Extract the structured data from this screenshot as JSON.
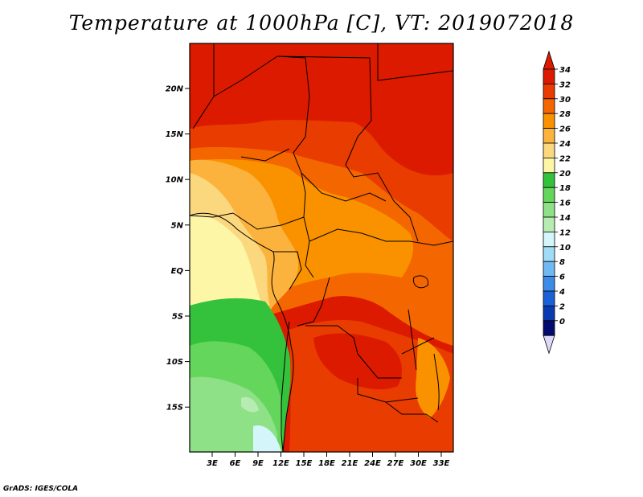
{
  "title": "Temperature at 1000hPa [C], VT: 2019072018",
  "credit": "GrADS: IGES/COLA",
  "map": {
    "lat_ticks": [
      "20N",
      "15N",
      "10N",
      "5N",
      "EQ",
      "5S",
      "10S",
      "15S"
    ],
    "lon_ticks": [
      "3E",
      "6E",
      "9E",
      "12E",
      "15E",
      "18E",
      "21E",
      "24E",
      "27E",
      "30E",
      "33E"
    ],
    "lon_range": [
      0,
      35
    ],
    "lat_range": [
      -20,
      24.5
    ]
  },
  "colorbar": {
    "labels": [
      "34",
      "32",
      "30",
      "28",
      "26",
      "24",
      "22",
      "20",
      "18",
      "16",
      "14",
      "12",
      "10",
      "8",
      "6",
      "4",
      "2",
      "0"
    ],
    "colors": [
      "#dc1a00",
      "#e93c00",
      "#f46600",
      "#fa9200",
      "#fcb33e",
      "#fbd77e",
      "#fdf6a6",
      "#34c23d",
      "#64d65c",
      "#8ee186",
      "#b6ecb1",
      "#d4f5fa",
      "#a0dcf5",
      "#70b9f2",
      "#3b8be8",
      "#1a60d6",
      "#0a3aaf",
      "#040b70"
    ],
    "top_color": "#dc1a00",
    "bottom_color": "#ddd9f8"
  }
}
